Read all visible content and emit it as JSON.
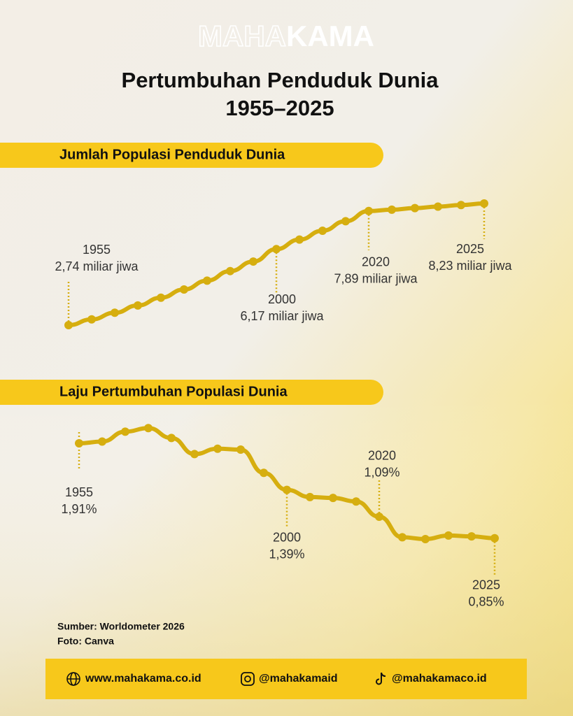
{
  "header": {
    "logo_left": "MAHA",
    "logo_right": "KAMA",
    "title_line1": "Pertumbuhan Penduduk Dunia",
    "title_line2": "1955–2025"
  },
  "chart_data": [
    {
      "type": "line",
      "title": "Jumlah Populasi Penduduk Dunia",
      "color": "#d6ae0f",
      "categories": [
        "1955",
        null,
        null,
        null,
        null,
        null,
        null,
        null,
        null,
        "2000",
        null,
        null,
        null,
        "2020",
        null,
        null,
        null,
        null,
        "2025"
      ],
      "values": [
        2.74,
        3.0,
        3.3,
        3.63,
        3.98,
        4.35,
        4.75,
        5.18,
        5.61,
        6.17,
        6.6,
        7.0,
        7.43,
        7.89,
        7.95,
        8.02,
        8.09,
        8.16,
        8.23
      ],
      "value_labels": [
        "2,74 miliar jiwa",
        null,
        null,
        null,
        null,
        null,
        null,
        null,
        null,
        "6,17 miliar jiwa",
        null,
        null,
        null,
        "7,89 miliar jiwa",
        null,
        null,
        null,
        null,
        "8,23 miliar jiwa"
      ],
      "ylim": [
        2,
        9
      ]
    },
    {
      "type": "line",
      "title": "Laju Pertumbuhan Populasi Dunia",
      "color": "#d6ae0f",
      "categories": [
        "1955",
        null,
        null,
        null,
        null,
        null,
        null,
        null,
        null,
        "2000",
        null,
        null,
        null,
        "2020",
        null,
        null,
        null,
        null,
        "2025"
      ],
      "values": [
        1.91,
        1.93,
        2.04,
        2.08,
        1.97,
        1.79,
        1.85,
        1.84,
        1.58,
        1.39,
        1.31,
        1.3,
        1.26,
        1.09,
        0.86,
        0.84,
        0.88,
        0.87,
        0.85
      ],
      "value_labels": [
        "1,91%",
        null,
        null,
        null,
        null,
        null,
        null,
        null,
        null,
        "1,39%",
        null,
        null,
        null,
        "1,09%",
        null,
        null,
        null,
        null,
        "0,85%"
      ],
      "ylim": [
        0.5,
        2.5
      ]
    }
  ],
  "source": {
    "line1": "Sumber: Worldometer 2026",
    "line2": "Foto: Canva"
  },
  "footer": {
    "website": "www.mahakama.co.id",
    "instagram": "@mahakamaid",
    "tiktok": "@mahakamaco.id"
  }
}
